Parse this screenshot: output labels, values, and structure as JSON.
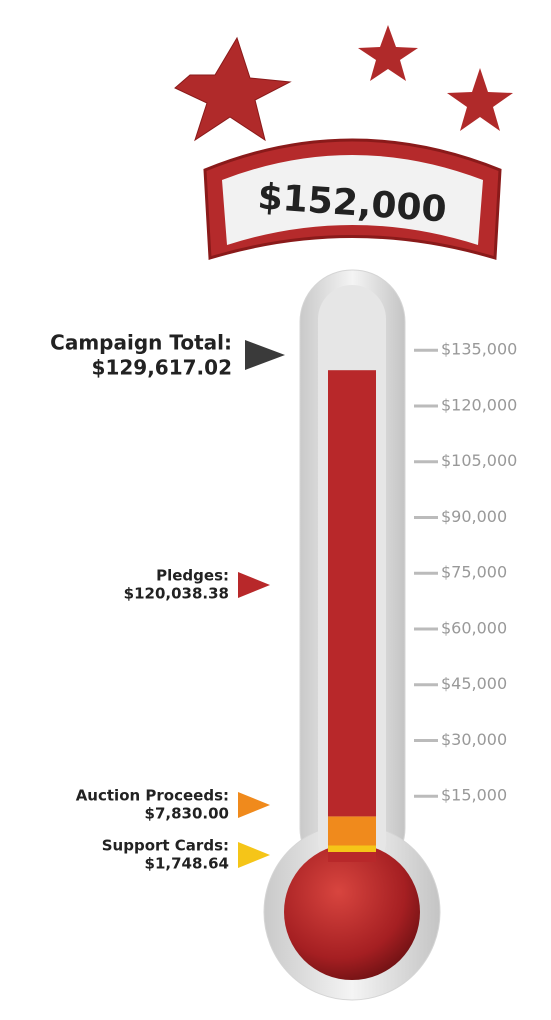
{
  "chart_data": {
    "type": "thermometer",
    "goal": {
      "value": 152000,
      "label": "$152,000"
    },
    "total": {
      "name": "Campaign Total:",
      "value": 129617.02,
      "value_label": "$129,617.02",
      "color": "#3a3a3a"
    },
    "series": [
      {
        "name": "Support Cards:",
        "color": "#f5c518",
        "values": [
          1748.64
        ],
        "value_labels": [
          "$1,748.64"
        ]
      },
      {
        "name": "Auction Proceeds:",
        "color": "#f08a1c",
        "values": [
          7830
        ],
        "value_labels": [
          "$7,830.00"
        ]
      },
      {
        "name": "Pledges:",
        "color": "#b8282a",
        "values": [
          120038.38
        ],
        "value_labels": [
          "$120,038.38"
        ]
      }
    ],
    "ylim": [
      0,
      152000
    ],
    "yticks": [
      {
        "value": 15000,
        "label": "$15,000"
      },
      {
        "value": 30000,
        "label": "$30,000"
      },
      {
        "value": 45000,
        "label": "$45,000"
      },
      {
        "value": 60000,
        "label": "$60,000"
      },
      {
        "value": 75000,
        "label": "$75,000"
      },
      {
        "value": 90000,
        "label": "$90,000"
      },
      {
        "value": 105000,
        "label": "$105,000"
      },
      {
        "value": 120000,
        "label": "$120,000"
      },
      {
        "value": 135000,
        "label": "$135,000"
      }
    ]
  }
}
